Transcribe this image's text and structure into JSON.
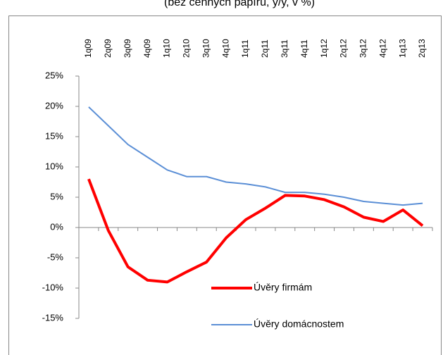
{
  "chart_data": {
    "type": "line",
    "subtitle": "(bez cenných papírů, y/y, v %)",
    "categories": [
      "1q09",
      "2q09",
      "3q09",
      "4q09",
      "1q10",
      "2q10",
      "3q10",
      "4q10",
      "1q11",
      "2q11",
      "3q11",
      "4q11",
      "1q12",
      "2q12",
      "3q12",
      "4q12",
      "1q13",
      "2q13"
    ],
    "series": [
      {
        "name": "Úvěry firmám",
        "color": "#ff0000",
        "values": [
          8,
          -0.5,
          -6.5,
          -8.7,
          -9,
          -7.3,
          -5.7,
          -1.7,
          1.3,
          3.2,
          5.3,
          5.2,
          4.6,
          3.4,
          1.7,
          1.0,
          2.9,
          0.3
        ]
      },
      {
        "name": "Úvěry domácnostem",
        "color": "#5b8fd6",
        "values": [
          19.9,
          16.8,
          13.7,
          11.6,
          9.5,
          8.4,
          8.4,
          7.5,
          7.2,
          6.7,
          5.8,
          5.8,
          5.5,
          5.0,
          4.3,
          4.0,
          3.7,
          4.0
        ]
      }
    ],
    "ylim": [
      -15,
      25
    ],
    "yticks": [
      {
        "value": -15,
        "label": "-15%"
      },
      {
        "value": -10,
        "label": "-10%"
      },
      {
        "value": -5,
        "label": "-5%"
      },
      {
        "value": 0,
        "label": "0%"
      },
      {
        "value": 5,
        "label": "5%"
      },
      {
        "value": 10,
        "label": "10%"
      },
      {
        "value": 15,
        "label": "15%"
      },
      {
        "value": 20,
        "label": "20%"
      },
      {
        "value": 25,
        "label": "25%"
      }
    ],
    "legend": "lower-right"
  }
}
